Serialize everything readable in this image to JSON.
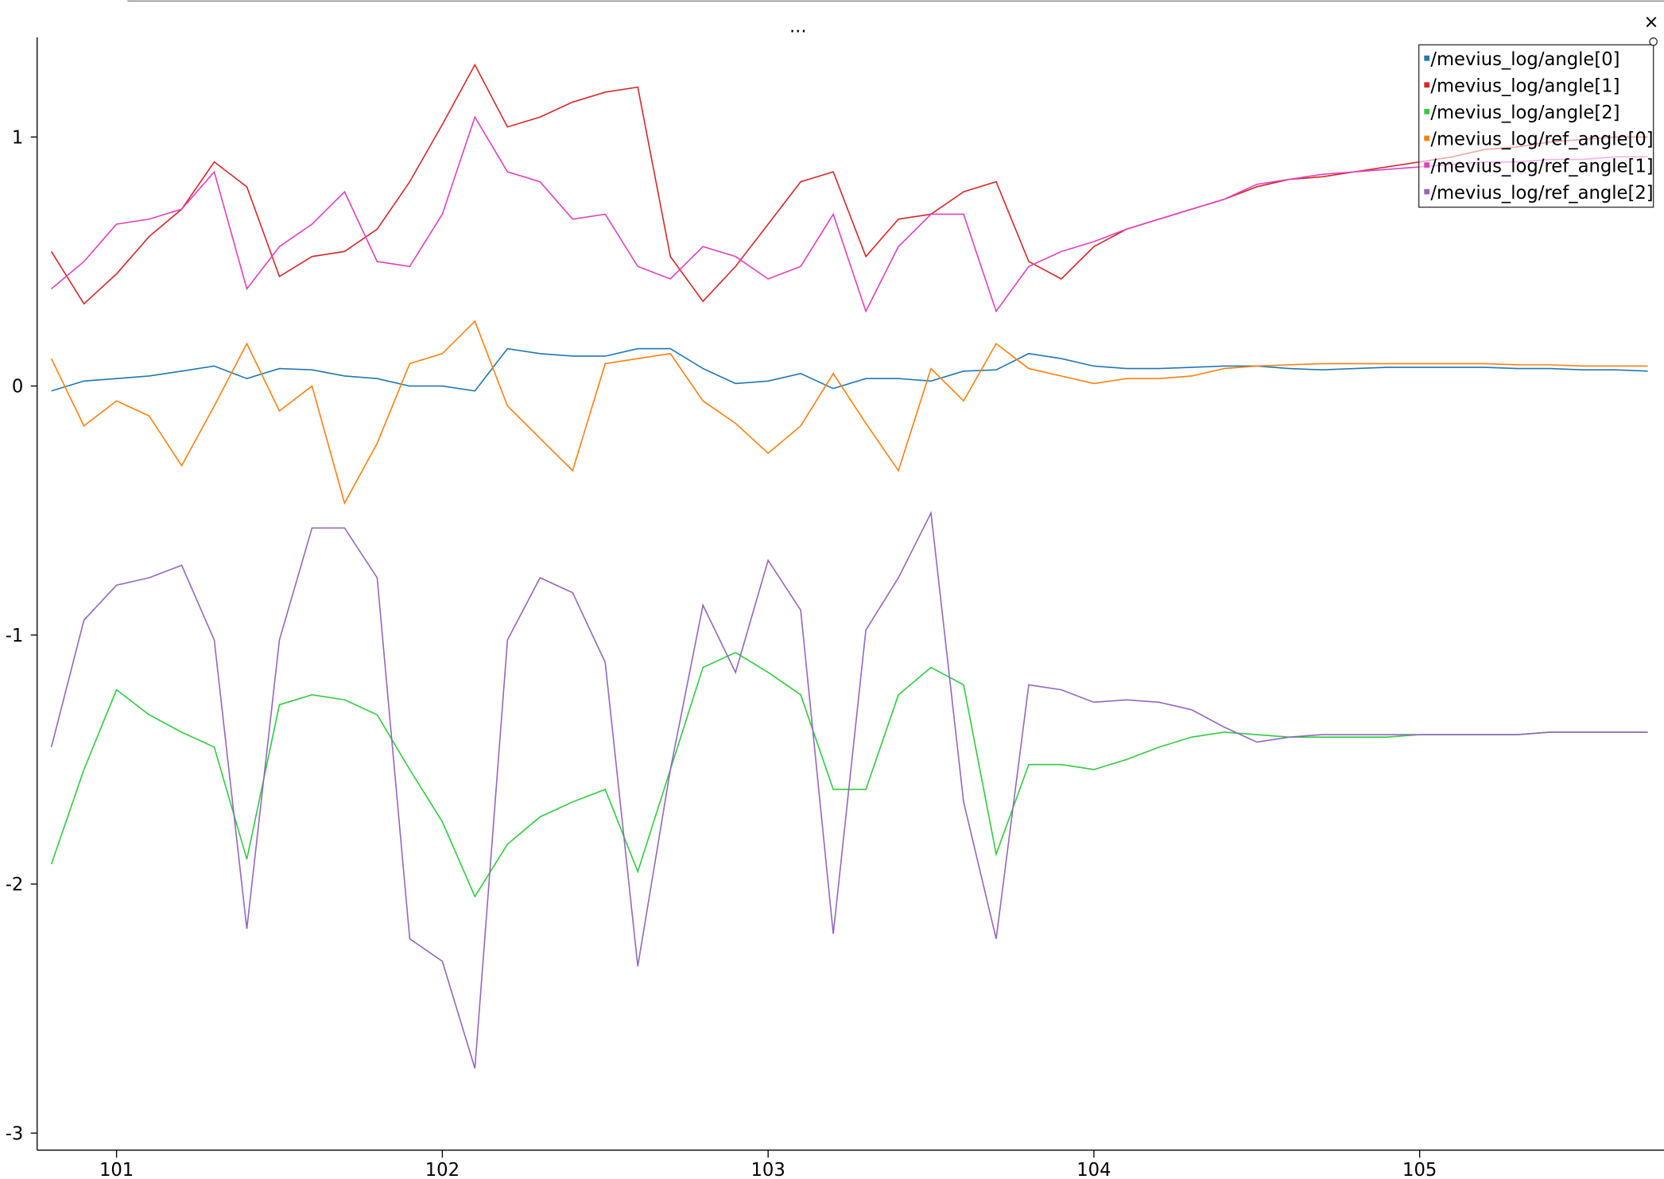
{
  "chart_data": {
    "type": "line",
    "title": "...",
    "close_label": "×",
    "x": [
      100.8,
      100.9,
      101.0,
      101.1,
      101.2,
      101.3,
      101.4,
      101.5,
      101.6,
      101.7,
      101.8,
      101.9,
      102.0,
      102.1,
      102.2,
      102.3,
      102.4,
      102.5,
      102.6,
      102.7,
      102.8,
      102.9,
      103.0,
      103.1,
      103.2,
      103.3,
      103.4,
      103.5,
      103.6,
      103.7,
      103.8,
      103.9,
      104.0,
      104.1,
      104.2,
      104.3,
      104.4,
      104.5,
      104.6,
      104.7,
      104.8,
      104.9,
      105.0,
      105.1,
      105.2,
      105.3,
      105.4,
      105.5,
      105.6,
      105.7
    ],
    "series": [
      {
        "name": "/mevius_log/angle[0]",
        "color": "#1f77b4",
        "values": [
          -0.02,
          0.02,
          0.03,
          0.04,
          0.06,
          0.08,
          0.03,
          0.07,
          0.065,
          0.04,
          0.03,
          0,
          0,
          -0.02,
          0.15,
          0.13,
          0.12,
          0.12,
          0.15,
          0.15,
          0.07,
          0.01,
          0.02,
          0.05,
          -0.01,
          0.03,
          0.03,
          0.02,
          0.06,
          0.065,
          0.13,
          0.11,
          0.08,
          0.07,
          0.07,
          0.075,
          0.08,
          0.08,
          0.07,
          0.065,
          0.07,
          0.075,
          0.075,
          0.075,
          0.075,
          0.07,
          0.07,
          0.065,
          0.065,
          0.06
        ]
      },
      {
        "name": "/mevius_log/angle[1]",
        "color": "#d62728",
        "values": [
          0.54,
          0.33,
          0.45,
          0.6,
          0.71,
          0.9,
          0.8,
          0.44,
          0.52,
          0.54,
          0.63,
          0.82,
          1.05,
          1.29,
          1.04,
          1.08,
          1.14,
          1.18,
          1.2,
          0.52,
          0.34,
          0.48,
          0.65,
          0.82,
          0.86,
          0.52,
          0.67,
          0.69,
          0.78,
          0.82,
          0.5,
          0.43,
          0.56,
          0.63,
          0.67,
          0.71,
          0.75,
          0.8,
          0.83,
          0.84,
          0.86,
          0.88,
          0.9,
          0.92,
          0.95,
          0.96,
          0.98,
          0.99,
          1.0,
          1.0
        ]
      },
      {
        "name": "/mevius_log/angle[2]",
        "color": "#2ecc40",
        "values": [
          -1.92,
          -1.54,
          -1.22,
          -1.32,
          -1.39,
          -1.45,
          -1.9,
          -1.28,
          -1.24,
          -1.26,
          -1.32,
          -1.54,
          -1.75,
          -2.05,
          -1.84,
          -1.73,
          -1.67,
          -1.62,
          -1.95,
          -1.54,
          -1.13,
          -1.07,
          -1.15,
          -1.24,
          -1.62,
          -1.62,
          -1.24,
          -1.13,
          -1.2,
          -1.88,
          -1.52,
          -1.52,
          -1.54,
          -1.5,
          -1.45,
          -1.41,
          -1.39,
          -1.4,
          -1.41,
          -1.41,
          -1.41,
          -1.41,
          -1.4,
          -1.4,
          -1.4,
          -1.4,
          -1.39,
          -1.39,
          -1.39,
          -1.39
        ]
      },
      {
        "name": "/mevius_log/ref_angle[0]",
        "color": "#ff7f0e",
        "values": [
          0.11,
          -0.16,
          -0.06,
          -0.12,
          -0.32,
          -0.08,
          0.17,
          -0.1,
          0,
          -0.47,
          -0.23,
          0.09,
          0.13,
          0.26,
          -0.08,
          -0.21,
          -0.34,
          0.09,
          0.11,
          0.13,
          -0.06,
          -0.15,
          -0.27,
          -0.16,
          0.05,
          -0.15,
          -0.34,
          0.07,
          -0.06,
          0.17,
          0.07,
          0.04,
          0.01,
          0.03,
          0.03,
          0.04,
          0.07,
          0.08,
          0.085,
          0.09,
          0.09,
          0.09,
          0.09,
          0.09,
          0.09,
          0.085,
          0.085,
          0.08,
          0.08,
          0.08
        ]
      },
      {
        "name": "/mevius_log/ref_angle[1]",
        "color": "#e040c0",
        "values": [
          0.39,
          0.5,
          0.65,
          0.67,
          0.71,
          0.86,
          0.39,
          0.56,
          0.65,
          0.78,
          0.5,
          0.48,
          0.69,
          1.08,
          0.86,
          0.82,
          0.67,
          0.69,
          0.48,
          0.43,
          0.56,
          0.52,
          0.43,
          0.48,
          0.69,
          0.3,
          0.56,
          0.69,
          0.69,
          0.3,
          0.48,
          0.54,
          0.58,
          0.63,
          0.67,
          0.71,
          0.75,
          0.81,
          0.83,
          0.85,
          0.86,
          0.87,
          0.88,
          0.89,
          0.9,
          0.9,
          0.91,
          0.91,
          0.92,
          0.92
        ]
      },
      {
        "name": "/mevius_log/ref_angle[2]",
        "color": "#9467bd",
        "values": [
          -1.45,
          -0.94,
          -0.8,
          -0.77,
          -0.72,
          -1.02,
          -2.18,
          -1.02,
          -0.57,
          -0.57,
          -0.77,
          -2.22,
          -2.31,
          -2.74,
          -1.02,
          -0.77,
          -0.83,
          -1.11,
          -2.33,
          -1.54,
          -0.88,
          -1.15,
          -0.7,
          -0.9,
          -2.2,
          -0.98,
          -0.77,
          -0.51,
          -1.67,
          -2.22,
          -1.2,
          -1.22,
          -1.27,
          -1.26,
          -1.27,
          -1.3,
          -1.37,
          -1.43,
          -1.41,
          -1.4,
          -1.4,
          -1.4,
          -1.4,
          -1.4,
          -1.4,
          -1.4,
          -1.39,
          -1.39,
          -1.39,
          -1.39
        ]
      }
    ],
    "xlim": [
      100.766,
      105.75
    ],
    "xticks": [
      101,
      102,
      103,
      104,
      105
    ],
    "ylim": [
      -3.06,
      1.4
    ],
    "yticks": [
      -3,
      -2,
      -1,
      0,
      1
    ],
    "legend": "upper right"
  }
}
